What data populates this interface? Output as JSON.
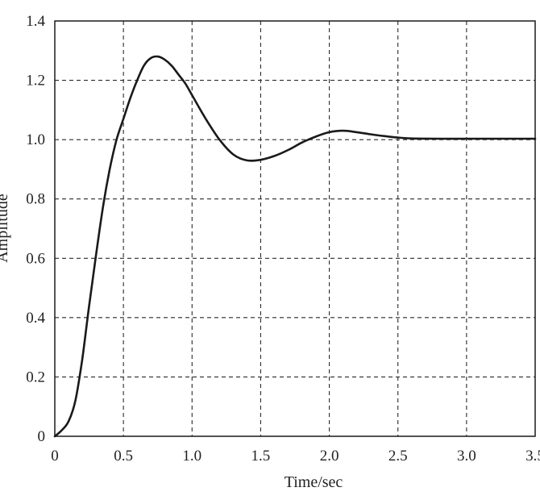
{
  "chart_data": {
    "type": "line",
    "title": "",
    "xlabel": "Time/sec",
    "ylabel": "Amplitude",
    "xlim": [
      0,
      3.5
    ],
    "ylim": [
      0,
      1.4
    ],
    "grid": true,
    "x_ticks": [
      "0",
      "0.5",
      "1.0",
      "1.5",
      "2.0",
      "2.5",
      "3.0",
      "3.5"
    ],
    "y_ticks": [
      "0",
      "0.2",
      "0.4",
      "0.6",
      "0.8",
      "1.0",
      "1.2",
      "1.4"
    ],
    "series": [
      {
        "name": "",
        "x": [
          0,
          0.05,
          0.1,
          0.15,
          0.2,
          0.25,
          0.3,
          0.35,
          0.4,
          0.45,
          0.5,
          0.55,
          0.6,
          0.65,
          0.7,
          0.75,
          0.8,
          0.85,
          0.9,
          0.95,
          1.0,
          1.1,
          1.2,
          1.3,
          1.4,
          1.5,
          1.6,
          1.7,
          1.8,
          1.9,
          2.0,
          2.1,
          2.2,
          2.3,
          2.4,
          2.5,
          2.6,
          2.8,
          3.0,
          3.2,
          3.5
        ],
        "values": [
          0,
          0.02,
          0.05,
          0.12,
          0.26,
          0.44,
          0.61,
          0.77,
          0.9,
          1.0,
          1.07,
          1.14,
          1.2,
          1.25,
          1.275,
          1.28,
          1.27,
          1.25,
          1.22,
          1.19,
          1.15,
          1.07,
          1.0,
          0.95,
          0.93,
          0.932,
          0.945,
          0.965,
          0.99,
          1.01,
          1.025,
          1.03,
          1.025,
          1.018,
          1.012,
          1.007,
          1.004,
          1.003,
          1.003,
          1.003,
          1.003
        ],
        "color": "#1a1a1a"
      }
    ]
  }
}
